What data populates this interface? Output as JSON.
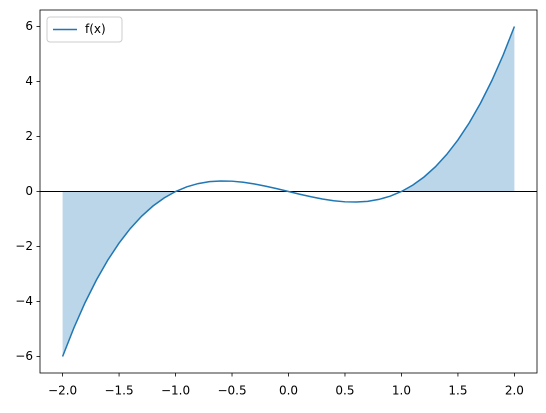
{
  "chart_data": {
    "type": "line",
    "x": [
      -2,
      -1.9,
      -1.8,
      -1.7,
      -1.6,
      -1.5,
      -1.4,
      -1.3,
      -1.2,
      -1.1,
      -1,
      -0.9,
      -0.8,
      -0.7,
      -0.6,
      -0.5,
      -0.4,
      -0.3,
      -0.2,
      -0.1,
      0,
      0.1,
      0.2,
      0.3,
      0.4,
      0.5,
      0.6,
      0.7,
      0.8,
      0.9,
      1,
      1.1,
      1.2,
      1.3,
      1.4,
      1.5,
      1.6,
      1.7,
      1.8,
      1.9,
      2
    ],
    "series": [
      {
        "name": "f(x)",
        "color": "#1f77b4",
        "values": [
          -6,
          -4.959,
          -4.032,
          -3.213,
          -2.496,
          -1.875,
          -1.344,
          -0.897,
          -0.528,
          -0.231,
          0,
          0.171,
          0.288,
          0.357,
          0.384,
          0.375,
          0.336,
          0.273,
          0.192,
          0.099,
          0,
          -0.099,
          -0.192,
          -0.273,
          -0.336,
          -0.375,
          -0.384,
          -0.357,
          -0.288,
          -0.171,
          0,
          0.231,
          0.528,
          0.897,
          1.344,
          1.875,
          2.496,
          3.213,
          4.032,
          4.959,
          6
        ]
      }
    ],
    "fill": {
      "color": "#1f77b4",
      "opacity": 0.3,
      "ranges": [
        [
          -2,
          -1
        ],
        [
          1,
          2
        ]
      ]
    },
    "axhline": 0,
    "xlim": [
      -2.2,
      2.2
    ],
    "xticks": [
      {
        "value": -2,
        "label": "−2.0"
      },
      {
        "value": -1.5,
        "label": "−1.5"
      },
      {
        "value": -1,
        "label": "−1.0"
      },
      {
        "value": -0.5,
        "label": "−0.5"
      },
      {
        "value": 0,
        "label": "0.0"
      },
      {
        "value": 0.5,
        "label": "0.5"
      },
      {
        "value": 1,
        "label": "1.0"
      },
      {
        "value": 1.5,
        "label": "1.5"
      },
      {
        "value": 2,
        "label": "2.0"
      }
    ],
    "ylim": [
      -6.6,
      6.6
    ],
    "yticks": [
      {
        "value": -6,
        "label": "−6"
      },
      {
        "value": -4,
        "label": "−4"
      },
      {
        "value": -2,
        "label": "−2"
      },
      0,
      2,
      4,
      6
    ],
    "legend": "upper left"
  }
}
